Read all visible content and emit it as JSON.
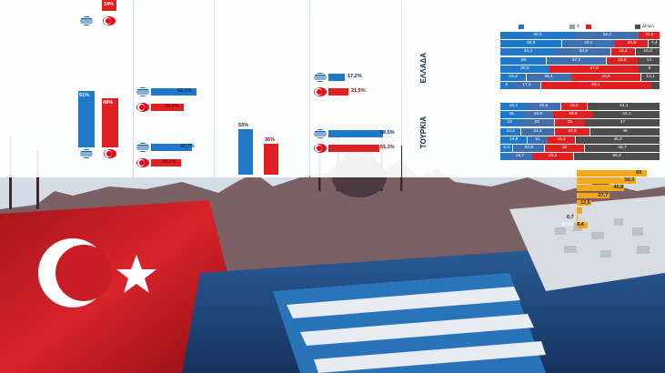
{
  "colors": {
    "greece_blue": "#1f78c8",
    "turkey_red": "#e02020",
    "navy": "#0d2c63",
    "grey": "#9aa1a9",
    "dark_grey": "#4d4d4d",
    "orange": "#f4a81c"
  },
  "icons": [
    "greek-flag-icon",
    "turkish-flag-icon"
  ],
  "col1": {
    "top_text": "",
    "top_value_tr": "24%",
    "heading": "",
    "desc": "",
    "sub": "",
    "value_gr": "51%",
    "value_tr": "48%"
  },
  "col2": {
    "heading": "",
    "desc": "",
    "q1": "",
    "q1_value_gr": "42,1%",
    "q1_value_tr": "30,4%",
    "q2": "",
    "q2_value_gr": "37,7%",
    "q2_value_tr": "28,1%"
  },
  "col3": {
    "heading": "",
    "desc": "",
    "value_gr": "53%",
    "value_tr": "35%"
  },
  "col4": {
    "heading": "",
    "desc": "",
    "q1": "",
    "q1_value_gr": "17,2%",
    "q1_value_tr": "21,9%",
    "q2": "",
    "q2_value_gr": "58,5%",
    "q2_value_tr": "55,3%"
  },
  "col5": {
    "top_text": "",
    "legend_left": "",
    "legend_right": "",
    "legend_items": [
      "",
      "3",
      "",
      "ΔΓ/ΔΑ"
    ],
    "group_greece": "ΕΛΛΑΔΑ",
    "group_turkey": "ΤΟΥΡΚΙΑ"
  },
  "chart_data": [
    {
      "type": "bar",
      "title": "",
      "categories": [
        ""
      ],
      "series": [
        {
          "name": "",
          "values": [
            42.1
          ]
        },
        {
          "name": "",
          "values": [
            30.4
          ]
        }
      ]
    },
    {
      "type": "bar",
      "title": "",
      "categories": [
        ""
      ],
      "series": [
        {
          "name": "",
          "values": [
            37.7
          ]
        },
        {
          "name": "",
          "values": [
            28.1
          ]
        }
      ]
    },
    {
      "type": "bar",
      "title": "",
      "categories": [
        ""
      ],
      "series": [
        {
          "name": "",
          "values": [
            53
          ]
        },
        {
          "name": "",
          "values": [
            35
          ]
        }
      ]
    },
    {
      "type": "bar",
      "title": "",
      "categories": [
        ""
      ],
      "series": [
        {
          "name": "",
          "values": [
            17.2
          ]
        },
        {
          "name": "",
          "values": [
            21.9
          ]
        }
      ]
    },
    {
      "type": "bar",
      "title": "",
      "categories": [
        ""
      ],
      "series": [
        {
          "name": "",
          "values": [
            58.5
          ]
        },
        {
          "name": "",
          "values": [
            55.3
          ]
        }
      ]
    },
    {
      "type": "bar",
      "stacked": true,
      "group": "ΕΛΛΑΔΑ",
      "series_names": [
        "",
        "",
        "",
        "",
        ""
      ],
      "categories": [
        "",
        "",
        "",
        "",
        "",
        "",
        ""
      ],
      "values": [
        [
          40.3,
          34.3,
          0,
          11.5,
          0
        ],
        [
          38.5,
          33.1,
          0,
          20.8,
          7.4
        ],
        [
          34.4,
          33.9,
          0,
          15.2,
          15.3
        ],
        [
          29.0,
          37.3,
          0,
          19.8,
          14.0
        ],
        [
          20.8,
          0,
          0,
          37.6,
          9.0
        ],
        [
          16.3,
          28.1,
          0,
          43.5,
          12.1
        ],
        [
          8.0,
          17.3,
          0,
          69.1,
          5.6
        ]
      ]
    },
    {
      "type": "bar",
      "stacked": true,
      "group": "ΤΟΥΡΚΙΑ",
      "series_names": [
        "",
        "",
        "",
        "",
        ""
      ],
      "categories": [
        "",
        "",
        "",
        "",
        "",
        "",
        ""
      ],
      "values": [
        [
          16.1,
          20.6,
          0,
          16.2,
          44.1
        ],
        [
          15.0,
          19.8,
          0,
          26.6,
          44.1
        ],
        [
          12.0,
          22.0,
          0,
          19.0,
          47.0
        ],
        [
          13.3,
          21.5,
          0,
          22.5,
          45.0
        ],
        [
          14.8,
          11.0,
          0,
          15.2,
          46.2
        ],
        [
          8.3,
          20.9,
          0,
          26.0,
          49.7
        ],
        [
          5.0,
          15.7,
          0,
          26.9,
          56.3
        ]
      ]
    },
    {
      "type": "bar",
      "title": "",
      "categories": [
        "",
        "",
        "",
        "",
        "",
        "",
        "",
        "ΔΓ/ΔΑ"
      ],
      "values": [
        60.0,
        50.3,
        40.8,
        27.7,
        12.5,
        5.0,
        0.7,
        9.4
      ],
      "value_labels": [
        "60",
        "50,3",
        "40,8",
        "27,7",
        "12,5",
        "",
        "0,7",
        "9,4"
      ],
      "xlim": [
        0,
        70
      ]
    }
  ]
}
